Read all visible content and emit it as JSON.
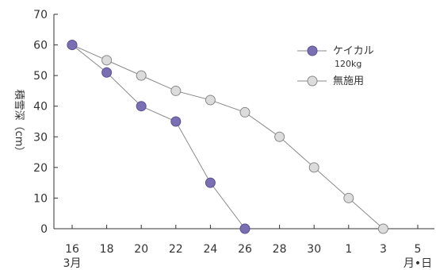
{
  "chart_data": {
    "type": "line",
    "x": [
      "16",
      "18",
      "20",
      "22",
      "24",
      "26",
      "28",
      "30",
      "1",
      "3",
      "5"
    ],
    "x_sublabel": "3月",
    "x_unit_label": "月•日",
    "ylabel": "積雪深（cm）",
    "ylim": [
      0,
      70
    ],
    "yticks": [
      0,
      10,
      20,
      30,
      40,
      50,
      60,
      70
    ],
    "grid": false,
    "legend_position": "top-right",
    "series": [
      {
        "name": "ケイカル",
        "name_sub": "120kg",
        "color": "#7b6fb3",
        "values": [
          60,
          51,
          40,
          35,
          15,
          0,
          null,
          null,
          null,
          null,
          null
        ]
      },
      {
        "name": "無施用",
        "color": "#dcdcdc",
        "values": [
          60,
          55,
          50,
          45,
          42,
          38,
          30,
          20,
          10,
          0,
          null
        ]
      }
    ]
  }
}
